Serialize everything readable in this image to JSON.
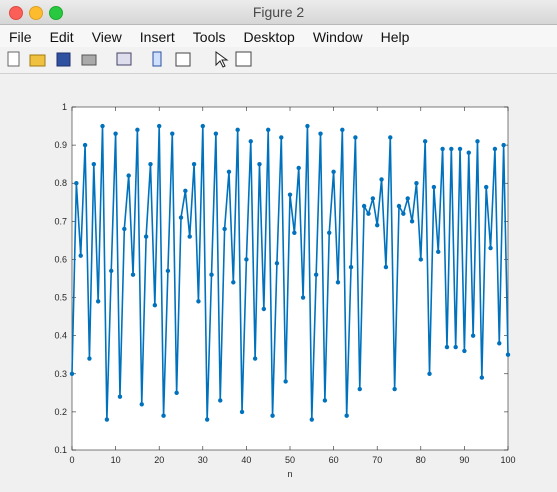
{
  "window": {
    "title": "Figure 2",
    "menu": [
      "File",
      "Edit",
      "View",
      "Insert",
      "Tools",
      "Desktop",
      "Window",
      "Help"
    ]
  },
  "chart_data": {
    "type": "line",
    "xlabel": "n",
    "x": [
      0,
      1,
      2,
      3,
      4,
      5,
      6,
      7,
      8,
      9,
      10,
      11,
      12,
      13,
      14,
      15,
      16,
      17,
      18,
      19,
      20,
      21,
      22,
      23,
      24,
      25,
      26,
      27,
      28,
      29,
      30,
      31,
      32,
      33,
      34,
      35,
      36,
      37,
      38,
      39,
      40,
      41,
      42,
      43,
      44,
      45,
      46,
      47,
      48,
      49,
      50,
      51,
      52,
      53,
      54,
      55,
      56,
      57,
      58,
      59,
      60,
      61,
      62,
      63,
      64,
      65,
      66,
      67,
      68,
      69,
      70,
      71,
      72,
      73,
      74,
      75,
      76,
      77,
      78,
      79,
      80,
      81,
      82,
      83,
      84,
      85,
      86,
      87,
      88,
      89,
      90,
      91,
      92,
      93,
      94,
      95,
      96,
      97,
      98,
      99,
      100
    ],
    "series": [
      {
        "color": "#0072bd",
        "values": [
          0.3,
          0.8,
          0.61,
          0.9,
          0.34,
          0.85,
          0.49,
          0.95,
          0.18,
          0.57,
          0.93,
          0.24,
          0.68,
          0.82,
          0.56,
          0.94,
          0.22,
          0.66,
          0.85,
          0.48,
          0.95,
          0.19,
          0.57,
          0.93,
          0.25,
          0.71,
          0.78,
          0.66,
          0.85,
          0.49,
          0.95,
          0.18,
          0.56,
          0.93,
          0.23,
          0.68,
          0.83,
          0.54,
          0.94,
          0.2,
          0.6,
          0.91,
          0.34,
          0.85,
          0.47,
          0.94,
          0.19,
          0.59,
          0.92,
          0.28,
          0.77,
          0.67,
          0.84,
          0.5,
          0.95,
          0.18,
          0.56,
          0.93,
          0.23,
          0.67,
          0.83,
          0.54,
          0.94,
          0.19,
          0.58,
          0.92,
          0.26,
          0.74,
          0.72,
          0.76,
          0.69,
          0.81,
          0.58,
          0.92,
          0.26,
          0.74,
          0.72,
          0.76,
          0.7,
          0.8,
          0.6,
          0.91,
          0.3,
          0.79,
          0.62,
          0.89,
          0.37,
          0.89,
          0.37,
          0.89,
          0.36,
          0.88,
          0.4,
          0.91,
          0.29,
          0.79,
          0.63,
          0.89,
          0.38,
          0.9,
          0.35
        ]
      }
    ],
    "xlim": [
      0,
      100
    ],
    "xticks": [
      0,
      10,
      20,
      30,
      40,
      50,
      60,
      70,
      80,
      90,
      100
    ],
    "ylim": [
      0.1,
      1
    ],
    "yticks": [
      0.1,
      0.2,
      0.3,
      0.4,
      0.5,
      0.6,
      0.7,
      0.8,
      0.9,
      1
    ]
  }
}
